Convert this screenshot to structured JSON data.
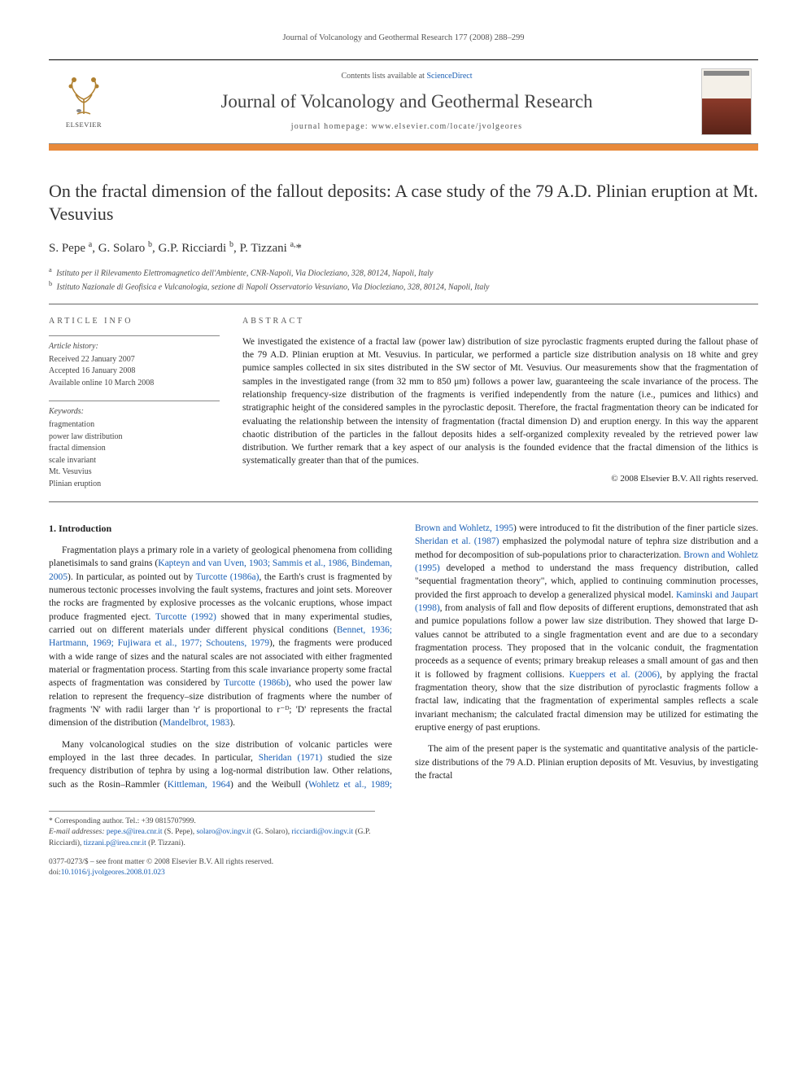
{
  "running_header": "Journal of Volcanology and Geothermal Research 177 (2008) 288–299",
  "header": {
    "elsevier_label": "ELSEVIER",
    "contents_prefix": "Contents lists available at ",
    "contents_link": "ScienceDirect",
    "journal_name": "Journal of Volcanology and Geothermal Research",
    "homepage_prefix": "journal homepage: ",
    "homepage_url": "www.elsevier.com/locate/jvolgeores",
    "cover_label": "VOLCANOLOGY"
  },
  "article": {
    "title": "On the fractal dimension of the fallout deposits: A case study of the 79 A.D. Plinian eruption at Mt. Vesuvius",
    "authors_html": "S. Pepe <sup>a</sup>, G. Solaro <sup>b</sup>, G.P. Ricciardi <sup>b</sup>, P. Tizzani <sup>a,</sup>*",
    "affiliations": [
      {
        "sup": "a",
        "text": "Istituto per il Rilevamento Elettromagnetico dell'Ambiente, CNR-Napoli, Via Diocleziano, 328, 80124, Napoli, Italy"
      },
      {
        "sup": "b",
        "text": "Istituto Nazionale di Geofisica e Vulcanologia, sezione di Napoli Osservatorio Vesuviano, Via Diocleziano, 328, 80124, Napoli, Italy"
      }
    ]
  },
  "meta": {
    "info_heading": "ARTICLE INFO",
    "history_title": "Article history:",
    "history_lines": [
      "Received 22 January 2007",
      "Accepted 16 January 2008",
      "Available online 10 March 2008"
    ],
    "keywords_title": "Keywords:",
    "keywords": [
      "fragmentation",
      "power law distribution",
      "fractal dimension",
      "scale invariant",
      "Mt. Vesuvius",
      "Plinian eruption"
    ]
  },
  "abstract": {
    "heading": "ABSTRACT",
    "text": "We investigated the existence of a fractal law (power law) distribution of size pyroclastic fragments erupted during the fallout phase of the 79 A.D. Plinian eruption at Mt. Vesuvius. In particular, we performed a particle size distribution analysis on 18 white and grey pumice samples collected in six sites distributed in the SW sector of Mt. Vesuvius. Our measurements show that the fragmentation of samples in the investigated range (from 32 mm to 850 μm) follows a power law, guaranteeing the scale invariance of the process. The relationship frequency-size distribution of the fragments is verified independently from the nature (i.e., pumices and lithics) and stratigraphic height of the considered samples in the pyroclastic deposit. Therefore, the fractal fragmentation theory can be indicated for evaluating the relationship between the intensity of fragmentation (fractal dimension D) and eruption energy. In this way the apparent chaotic distribution of the particles in the fallout deposits hides a self-organized complexity revealed by the retrieved power law distribution. We further remark that a key aspect of our analysis is the founded evidence that the fractal dimension of the lithics is systematically greater than that of the pumices.",
    "copyright": "© 2008 Elsevier B.V. All rights reserved."
  },
  "body": {
    "section_heading": "1. Introduction",
    "p1_a": "Fragmentation plays a primary role in a variety of geological phenomena from colliding planetisimals to sand grains (",
    "p1_cite1": "Kapteyn and van Uven, 1903; Sammis et al., 1986, Bindeman, 2005",
    "p1_b": "). In particular, as pointed out by ",
    "p1_cite2": "Turcotte (1986a)",
    "p1_c": ", the Earth's crust is fragmented by numerous tectonic processes involving the fault systems, fractures and joint sets. Moreover the rocks are fragmented by explosive processes as the volcanic eruptions, whose impact produce fragmented eject. ",
    "p1_cite3": "Turcotte (1992)",
    "p1_d": " showed that in many experimental studies, carried out on different materials under different physical conditions (",
    "p1_cite4": "Bennet, 1936; Hartmann, 1969; Fujiwara et al., 1977; Schoutens, 1979",
    "p1_e": "), the fragments were produced with a wide range of sizes and the natural scales are not associated with either fragmented material or fragmentation process. Starting from this scale invariance property some fractal aspects of fragmentation was considered by ",
    "p1_cite5": "Turcotte (1986b)",
    "p1_f": ", who used the power law relation to represent the frequency–size distribution of fragments where the number of fragments 'N' with radii larger than 'r' is proportional to r⁻ᴰ; 'D' represents the fractal dimension of the distribution (",
    "p1_cite6": "Mandelbrot, 1983",
    "p1_g": ").",
    "p2_a": "Many volcanological studies on the size distribution of volcanic particles were employed in the last three decades. In particular, ",
    "p2_cite1": "Sheridan (1971)",
    "p2_b": " studied the size frequency distribution of tephra by using a log-normal distribution law. Other relations, such as the Rosin–Rammler (",
    "p2_cite2": "Kittleman, 1964",
    "p2_c": ") and the Weibull (",
    "p2_cite3": "Wohletz et al., 1989; Brown and Wohletz, 1995",
    "p2_d": ") were introduced to fit the distribution of the finer particle sizes. ",
    "p2_cite4": "Sheridan et al. (1987)",
    "p2_e": " emphasized the polymodal nature of tephra size distribution and a method for decomposition of sub-populations prior to characterization. ",
    "p2_cite5": "Brown and Wohletz (1995)",
    "p2_f": " developed a method to understand the mass frequency distribution, called \"sequential fragmentation theory\", which, applied to continuing comminution processes, provided the first approach to develop a generalized physical model. ",
    "p2_cite6": "Kaminski and Jaupart (1998)",
    "p2_g": ", from analysis of fall and flow deposits of different eruptions, demonstrated that ash and pumice populations follow a power law size distribution. They showed that large D-values cannot be attributed to a single fragmentation event and are due to a secondary fragmentation process. They proposed that in the volcanic conduit, the fragmentation proceeds as a sequence of events; primary breakup releases a small amount of gas and then it is followed by fragment collisions. ",
    "p2_cite7": "Kueppers et al. (2006)",
    "p2_h": ", by applying the fractal fragmentation theory, show that the size distribution of pyroclastic fragments follow a fractal law, indicating that the fragmentation of experimental samples reflects a scale invariant mechanism; the calculated fractal dimension may be utilized for estimating the eruptive energy of past eruptions.",
    "p3": "The aim of the present paper is the systematic and quantitative analysis of the particle-size distributions of the 79 A.D. Plinian eruption deposits of Mt. Vesuvius, by investigating the fractal"
  },
  "footer": {
    "corresponding": "* Corresponding author. Tel.: +39 0815707999.",
    "emails_label": "E-mail addresses: ",
    "emails": [
      {
        "addr": "pepe.s@irea.cnr.it",
        "who": " (S. Pepe), "
      },
      {
        "addr": "solaro@ov.ingv.it",
        "who": " (G. Solaro), "
      },
      {
        "addr": "ricciardi@ov.ingv.it",
        "who": " (G.P. Ricciardi), "
      },
      {
        "addr": "tizzani.p@irea.cnr.it",
        "who": " (P. Tizzani)."
      }
    ],
    "front_matter": "0377-0273/$ – see front matter © 2008 Elsevier B.V. All rights reserved.",
    "doi_prefix": "doi:",
    "doi": "10.1016/j.jvolgeores.2008.01.023"
  },
  "colors": {
    "link": "#1a5fb4",
    "orange_bar": "#e8893a",
    "text": "#222222"
  }
}
